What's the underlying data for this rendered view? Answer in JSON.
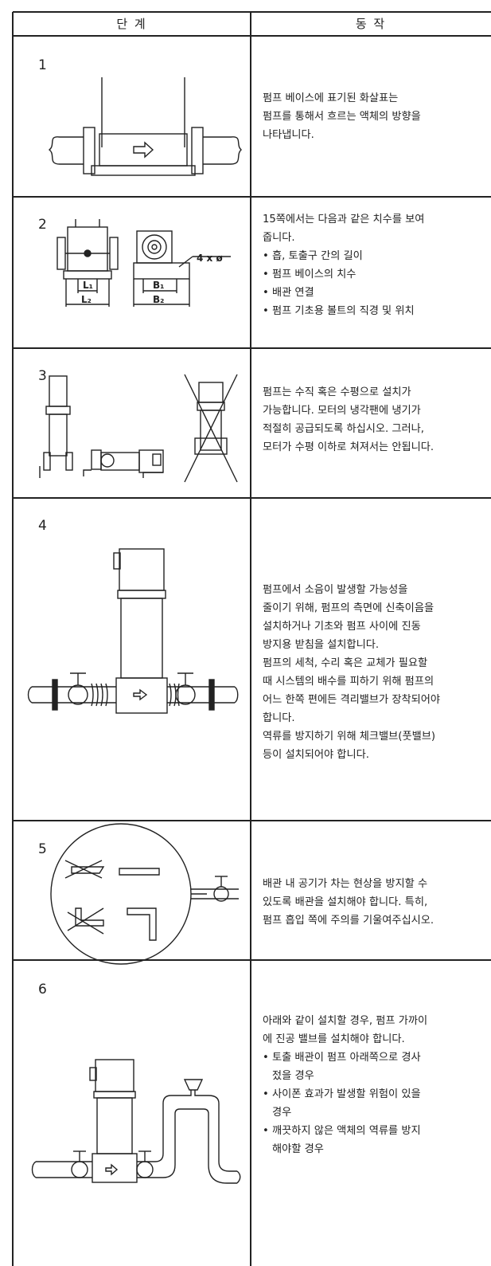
{
  "table": {
    "header": [
      "단 계",
      "동 작"
    ],
    "rows": [
      {
        "step": "1",
        "lines": [
          "펌프 베이스에 표기된 화살표는",
          "펌프를 통해서 흐르는 액체의 방향을",
          "나타냅니다."
        ]
      },
      {
        "step": "2",
        "lines": [
          "15쪽에서는 다음과 같은 치수를 보여",
          "줍니다.",
          "• 흡, 토출구 간의 길이",
          "• 펌프 베이스의 치수",
          "• 배관 연결",
          "• 펌프 기초용 볼트의 직경 및 위치"
        ],
        "figure_labels": [
          "4 x ø",
          "L₁",
          "L₂",
          "B₁",
          "B₂"
        ]
      },
      {
        "step": "3",
        "lines": [
          "펌프는 수직 혹은 수평으로 설치가",
          "가능합니다. 모터의 냉각팬에 냉기가",
          "적절히 공급되도록 하십시오. 그러나,",
          "모터가 수평 이하로 쳐져서는 안됩니다."
        ]
      },
      {
        "step": "4",
        "lines": [
          "펌프에서 소음이 발생할 가능성을",
          "줄이기 위해, 펌프의 측면에 신축이음을",
          "설치하거나 기초와 펌프 사이에 진동",
          "방지용 받침을 설치합니다.",
          "펌프의 세척, 수리 혹은 교체가 필요할",
          "때 시스템의 배수를 피하기 위해 펌프의",
          "어느 한쪽 편에든 격리밸브가 장착되어야",
          "합니다.",
          "역류를 방지하기 위해 체크밸브(풋밸브)",
          "등이 설치되어야 합니다."
        ]
      },
      {
        "step": "5",
        "lines": [
          "배관 내 공기가 차는 현상을 방지할 수",
          "있도록 배관을 설치해야 합니다. 특히,",
          "펌프 흡입 쪽에 주의를 기울여주십시오."
        ]
      },
      {
        "step": "6",
        "lines": [
          "아래와 같이 설치할 경우, 펌프 가까이",
          "에 진공 밸브를 설치해야 합니다.",
          "• 토출 배관이 펌프 아래쪽으로 경사",
          "젔을 경우",
          "• 사이폰 효과가 발생할 위험이 있을",
          "경우",
          "• 깨끗하지 않은 액체의 역류를 방지",
          "해야할 경우"
        ]
      }
    ]
  }
}
